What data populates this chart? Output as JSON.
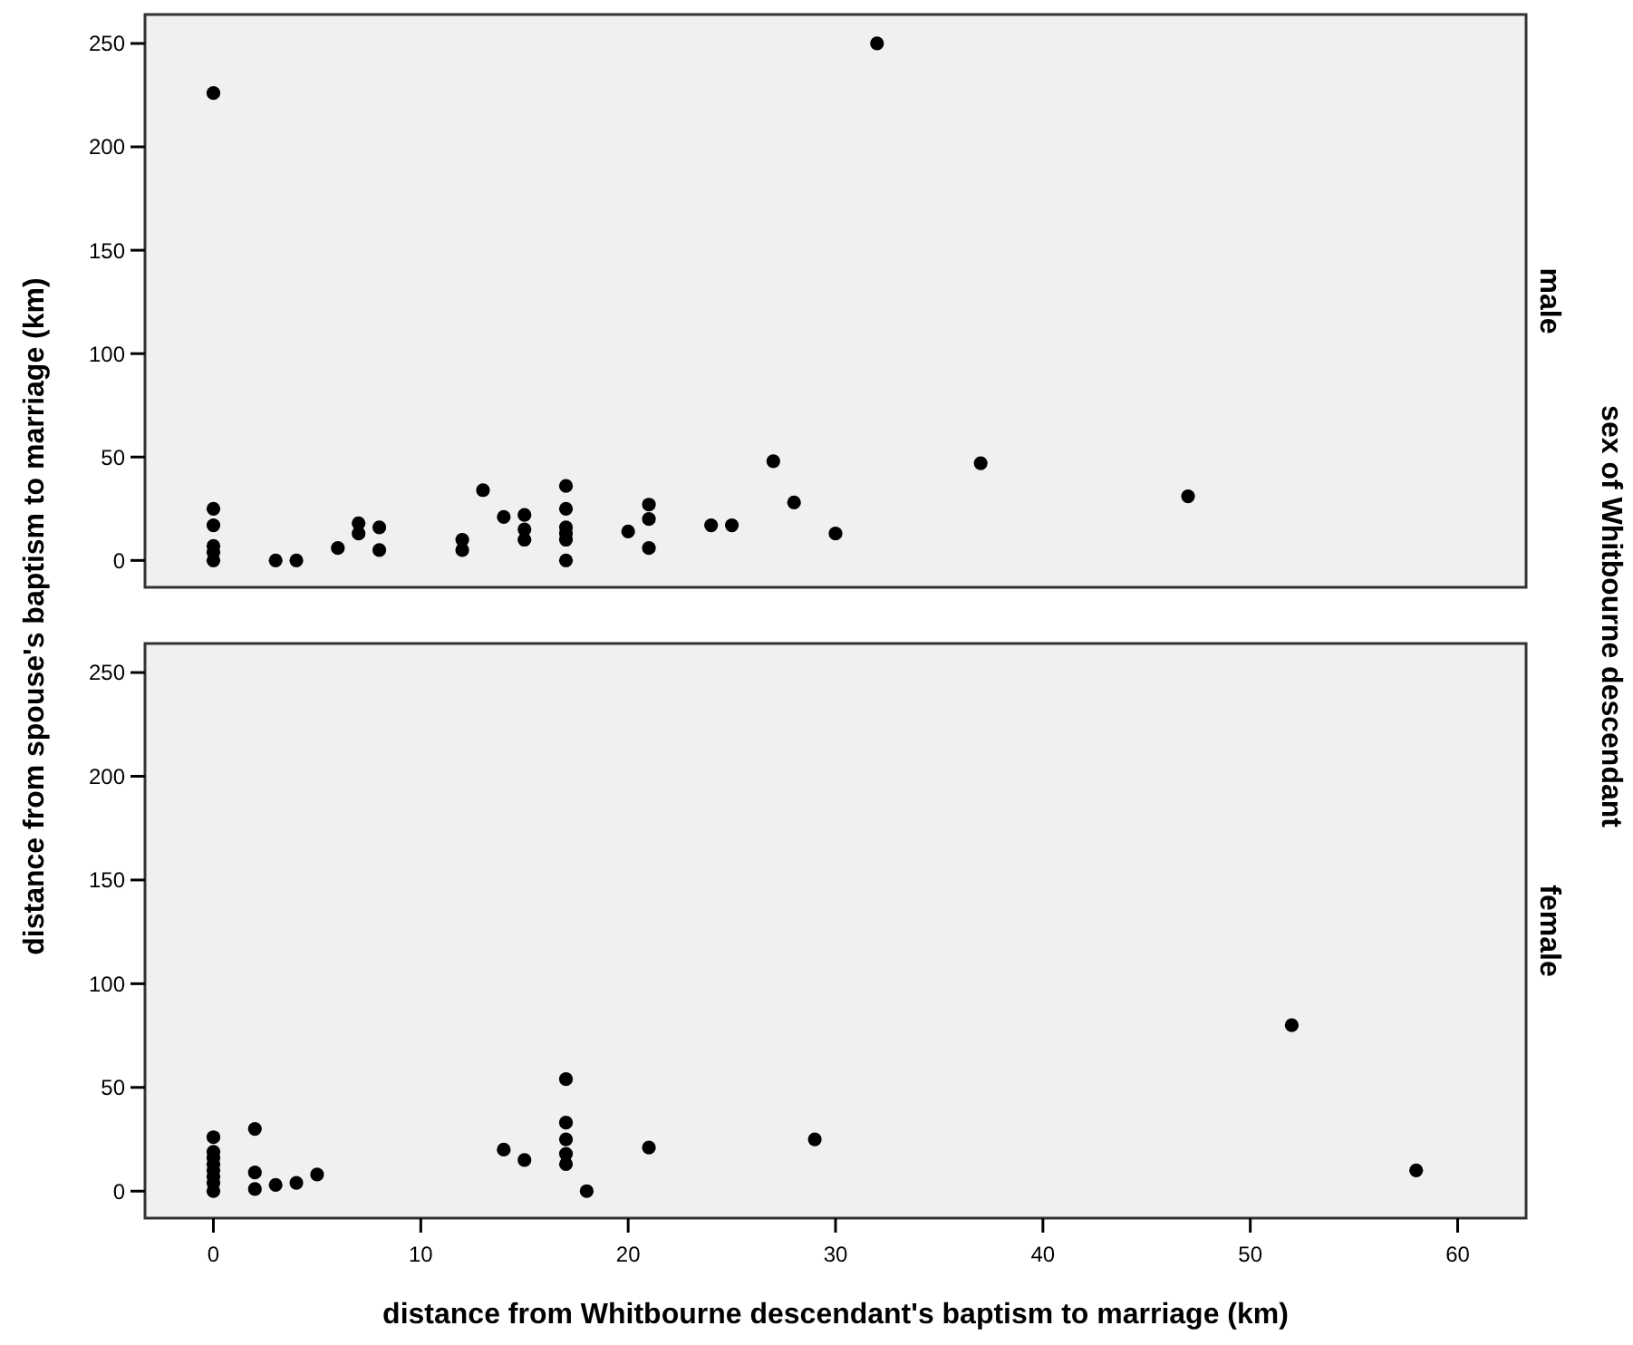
{
  "chart_data": [
    {
      "type": "scatter",
      "title": "male",
      "ylabel": "distance from spouse's baptism to marriage (km)",
      "annotations": [
        "sex of Whitbourne descendant"
      ],
      "x": [
        0,
        0,
        0,
        0,
        0,
        0,
        3,
        4,
        6,
        7,
        7,
        8,
        8,
        12,
        12,
        13,
        14,
        15,
        15,
        15,
        17,
        17,
        17,
        17,
        17,
        17,
        20,
        21,
        21,
        21,
        24,
        25,
        27,
        28,
        30,
        32,
        37,
        47
      ],
      "values": [
        226,
        25,
        17,
        7,
        4,
        0,
        0,
        0,
        6,
        18,
        13,
        16,
        5,
        10,
        5,
        34,
        21,
        22,
        15,
        10,
        36,
        25,
        16,
        13,
        10,
        0,
        14,
        27,
        20,
        6,
        17,
        17,
        48,
        28,
        13,
        250,
        47,
        31
      ],
      "color": "#000000",
      "marker": "circle",
      "xlim": [
        -3.3,
        63.3
      ],
      "ylim": [
        -13,
        264
      ],
      "yticks": [
        0,
        50,
        100,
        150,
        200,
        250
      ],
      "tick_labels": "y",
      "grid": false
    },
    {
      "type": "scatter",
      "title": "female",
      "xlabel": "distance from Whitbourne descendant's baptism to marriage (km)",
      "x": [
        0,
        0,
        0,
        0,
        0,
        0,
        0,
        0,
        2,
        2,
        2,
        3,
        4,
        5,
        14,
        15,
        17,
        17,
        17,
        17,
        17,
        18,
        21,
        29,
        52,
        58
      ],
      "values": [
        26,
        19,
        16,
        13,
        10,
        7,
        4,
        0,
        30,
        9,
        1,
        3,
        4,
        8,
        20,
        15,
        54,
        33,
        25,
        18,
        13,
        0,
        21,
        25,
        80,
        10
      ],
      "color": "#000000",
      "marker": "circle",
      "xlim": [
        -3.3,
        63.3
      ],
      "ylim": [
        -13,
        264
      ],
      "xticks": [
        0,
        10,
        20,
        30,
        40,
        50,
        60
      ],
      "yticks": [
        0,
        50,
        100,
        150,
        200,
        250
      ],
      "grid": false
    }
  ]
}
